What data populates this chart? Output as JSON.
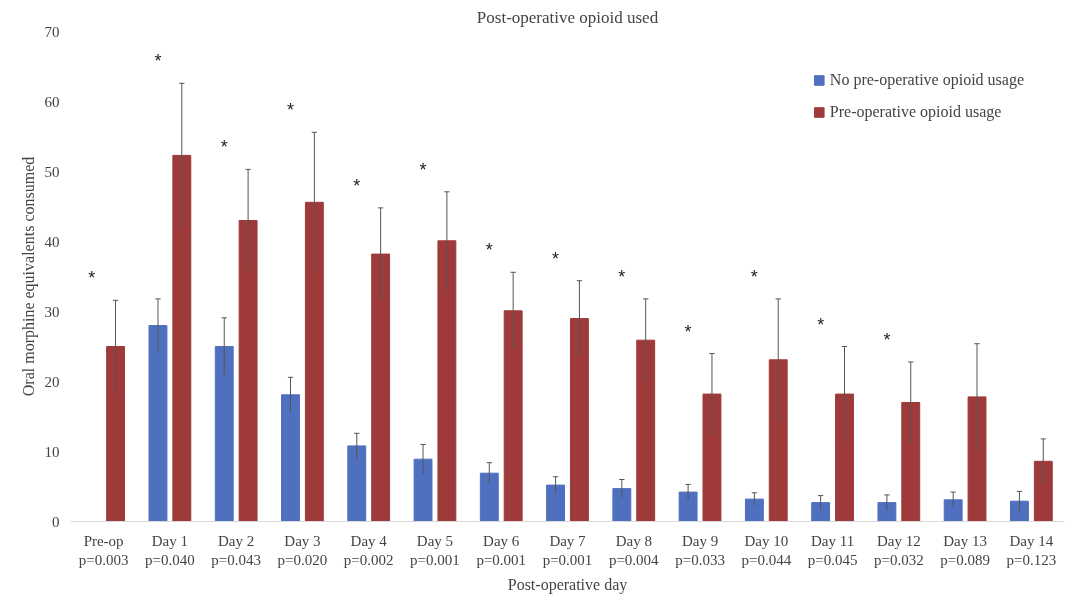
{
  "chart_data": {
    "type": "bar",
    "title": "Post-operative opioid used",
    "xlabel": "Post-operative day",
    "ylabel": "Oral morphine equivalents consumed",
    "categories": [
      "Pre-op\np=0.003",
      "Day 1\np=0.040",
      "Day 2\np=0.043",
      "Day 3\np=0.020",
      "Day 4\np=0.002",
      "Day 5\np=0.001",
      "Day 6\np=0.001",
      "Day 7\np=0.001",
      "Day 8\np=0.004",
      "Day 9\np=0.033",
      "Day 10\np=0.044",
      "Day 11\np=0.045",
      "Day 12\np=0.032",
      "Day 13\np=0.089",
      "Day 14\np=0.123"
    ],
    "series": [
      {
        "name": "No pre-operative opioid usage",
        "color": "#4f6fbf",
        "values": [
          null,
          28.0,
          25.0,
          18.1,
          10.8,
          8.9,
          6.9,
          5.2,
          4.7,
          4.2,
          3.2,
          2.7,
          2.7,
          3.1,
          2.9
        ],
        "errors": [
          null,
          3.8,
          4.1,
          2.5,
          1.8,
          2.1,
          1.5,
          1.2,
          1.3,
          1.1,
          0.9,
          1.0,
          1.1,
          1.1,
          1.4
        ]
      },
      {
        "name": "Pre-operative opioid usage",
        "color": "#9e3a3a",
        "values": [
          25.0,
          52.3,
          43.0,
          45.6,
          38.2,
          40.1,
          30.1,
          29.0,
          25.9,
          18.2,
          23.1,
          18.2,
          17.0,
          17.8,
          8.6
        ],
        "errors": [
          6.6,
          10.3,
          7.3,
          10.0,
          6.6,
          7.0,
          5.5,
          5.4,
          5.9,
          5.8,
          8.7,
          6.8,
          5.8,
          7.6,
          3.2
        ]
      }
    ],
    "ylim": [
      0,
      70
    ],
    "yticks": [
      0,
      10,
      20,
      30,
      40,
      50,
      60,
      70
    ],
    "grid": false,
    "legend": "top right",
    "annotations": [
      "*",
      "*",
      "*",
      "*",
      "*",
      "*",
      "*",
      "*",
      "*",
      "*",
      "*",
      "*",
      "*"
    ]
  }
}
